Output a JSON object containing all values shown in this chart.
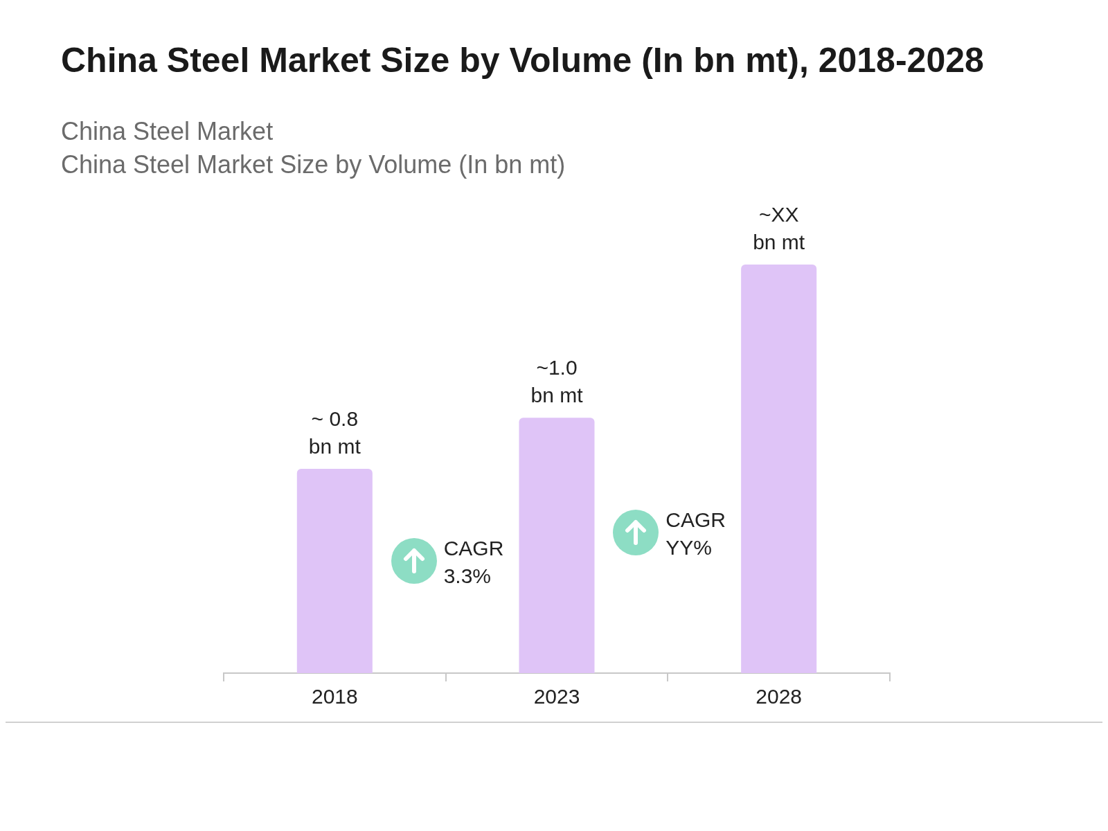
{
  "chart_data": {
    "type": "bar",
    "title": "China Steel Market Size by Volume (In bn mt), 2018-2028",
    "subtitle": "China Steel Market\nChina Steel Market Size by Volume (In bn mt)",
    "categories": [
      "2018",
      "2023",
      "2028"
    ],
    "values": [
      0.8,
      1.0,
      1.6
    ],
    "value_labels": [
      "~ 0.8 bn mt",
      "~1.0 bn mt",
      "~XX bn mt"
    ],
    "color": "#dfc4f7",
    "grid": false,
    "legend": false,
    "annotations": [
      "CAGR 3.3%",
      "CAGR YY%"
    ]
  }
}
